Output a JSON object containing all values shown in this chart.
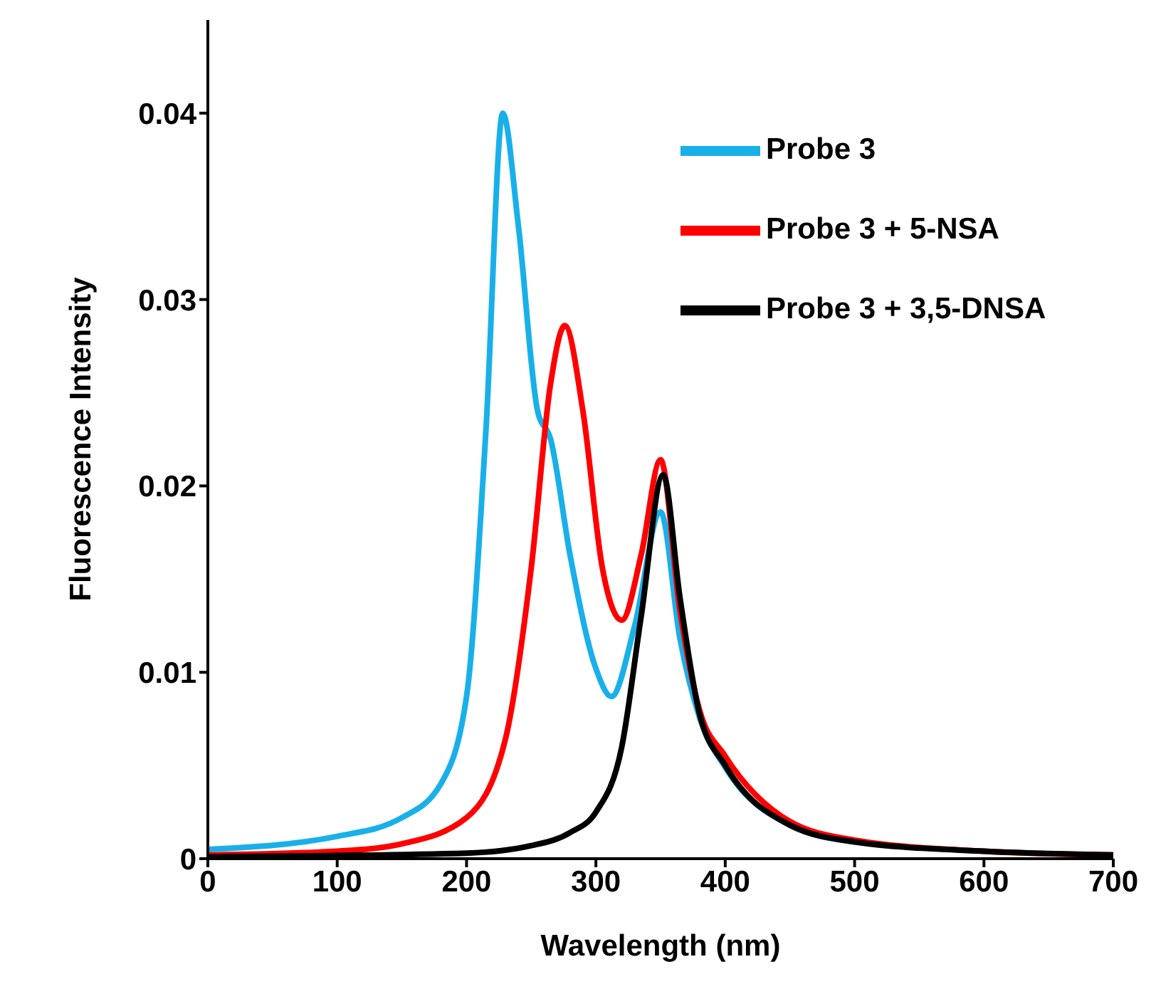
{
  "chart_data": {
    "type": "line",
    "xlabel": "Wavelength (nm)",
    "ylabel": "Fluorescence Intensity",
    "xlim": [
      0,
      700
    ],
    "xticks": [
      0,
      100,
      200,
      300,
      400,
      500,
      600,
      700
    ],
    "ylim": [
      0,
      0.045
    ],
    "yticks": [
      0,
      0.01,
      0.02,
      0.03,
      0.04
    ],
    "grid": false,
    "legend": "top right",
    "marker": "none",
    "line_style": "solid",
    "series": [
      {
        "name": "Probe 3",
        "color": "#19b0ea",
        "x": [
          0,
          100,
          150,
          180,
          200,
          215,
          228,
          240,
          255,
          265,
          280,
          300,
          312,
          330,
          350,
          365,
          380,
          400,
          450,
          500
        ],
        "values": [
          0.0005,
          0.0012,
          0.0022,
          0.004,
          0.0087,
          0.023,
          0.04,
          0.034,
          0.024,
          0.0225,
          0.0163,
          0.0102,
          0.0087,
          0.0125,
          0.0186,
          0.0118,
          0.0076,
          0.0049,
          0.0018,
          0.0009
        ]
      },
      {
        "name": "Probe 3 + 5-NSA",
        "color": "#ff0000",
        "x": [
          0,
          100,
          150,
          200,
          230,
          250,
          265,
          276,
          290,
          305,
          320,
          335,
          350,
          365,
          380,
          400,
          450,
          500,
          600,
          700
        ],
        "values": [
          0.0002,
          0.0004,
          0.0008,
          0.0022,
          0.0064,
          0.0156,
          0.0255,
          0.0286,
          0.024,
          0.0156,
          0.0128,
          0.0163,
          0.0214,
          0.0133,
          0.008,
          0.0055,
          0.002,
          0.001,
          0.0004,
          0.0002
        ]
      },
      {
        "name": "Probe 3 + 3,5-DNSA",
        "color": "#000000",
        "x": [
          0,
          200,
          250,
          280,
          300,
          320,
          335,
          352,
          365,
          380,
          400,
          450,
          500,
          600,
          700
        ],
        "values": [
          0.0001,
          0.0003,
          0.0007,
          0.0014,
          0.0025,
          0.006,
          0.013,
          0.0206,
          0.014,
          0.0078,
          0.005,
          0.0018,
          0.0009,
          0.0004,
          0.0002
        ]
      }
    ]
  }
}
